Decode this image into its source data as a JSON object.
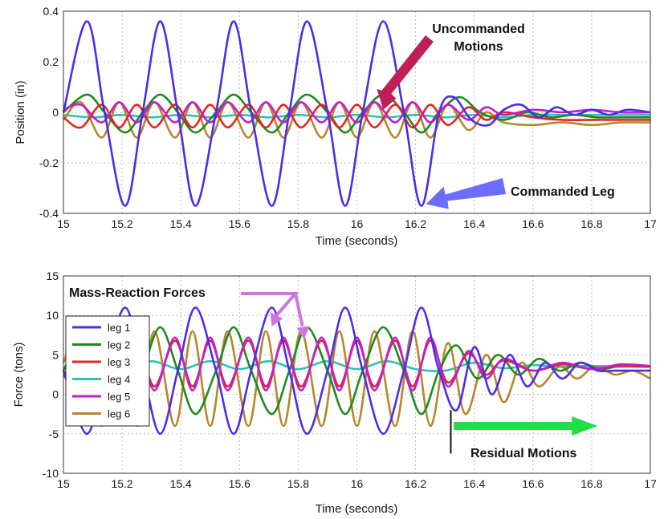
{
  "chart_data": [
    {
      "type": "line",
      "xlabel": "Time (seconds)",
      "ylabel": "Position (in)",
      "xlim": [
        15,
        17
      ],
      "ylim": [
        -0.4,
        0.4
      ],
      "xticks": [
        "15",
        "15.2",
        "15.4",
        "15.6",
        "15.8",
        "16",
        "16.2",
        "16.4",
        "16.6",
        "16.8",
        "17"
      ],
      "yticks": [
        "-0.4",
        "-0.2",
        "0",
        "0.2",
        "0.4"
      ],
      "grid": true,
      "series": [
        {
          "name": "leg 1",
          "color": "#4b2ee8",
          "x": [
            15.0,
            15.08,
            15.14,
            15.21,
            15.27,
            15.33,
            15.39,
            15.45,
            15.52,
            15.58,
            15.64,
            15.71,
            15.77,
            15.83,
            15.9,
            15.96,
            16.02,
            16.09,
            16.16,
            16.22,
            16.28,
            16.33,
            16.39,
            16.45,
            16.5,
            16.56,
            16.62,
            16.68,
            16.74,
            16.8,
            16.86,
            16.92,
            17.0
          ],
          "y": [
            0.0,
            0.36,
            0.0,
            -0.37,
            0.0,
            0.36,
            0.0,
            -0.37,
            0.0,
            0.36,
            0.0,
            -0.37,
            0.0,
            0.36,
            0.0,
            -0.37,
            0.0,
            0.36,
            0.0,
            -0.37,
            0.0,
            0.06,
            -0.03,
            -0.05,
            0.01,
            0.03,
            -0.02,
            0.02,
            -0.01,
            0.01,
            -0.01,
            0.01,
            0.0
          ]
        },
        {
          "name": "leg 2",
          "color": "#1e8a1e",
          "x": [
            15.0,
            15.08,
            15.14,
            15.21,
            15.27,
            15.33,
            15.39,
            15.45,
            15.52,
            15.58,
            15.64,
            15.71,
            15.77,
            15.83,
            15.9,
            15.96,
            16.02,
            16.09,
            16.16,
            16.22,
            16.28,
            16.35,
            16.42,
            16.5,
            16.58,
            16.66,
            16.74,
            16.82,
            16.9,
            17.0
          ],
          "y": [
            0.0,
            0.07,
            0.0,
            -0.08,
            0.0,
            0.07,
            0.0,
            -0.08,
            0.0,
            0.07,
            0.0,
            -0.08,
            0.0,
            0.07,
            0.0,
            -0.08,
            0.0,
            0.07,
            0.0,
            -0.08,
            0.0,
            0.06,
            0.0,
            -0.03,
            0.0,
            -0.02,
            -0.01,
            -0.02,
            -0.02,
            -0.02
          ]
        },
        {
          "name": "leg 3",
          "color": "#e3261f",
          "x": [
            15.0,
            15.06,
            15.13,
            15.19,
            15.25,
            15.31,
            15.38,
            15.44,
            15.5,
            15.56,
            15.63,
            15.69,
            15.75,
            15.81,
            15.88,
            15.94,
            16.0,
            16.06,
            16.13,
            16.19,
            16.25,
            16.31,
            16.38,
            16.44,
            16.5,
            16.6,
            16.7,
            16.8,
            16.9,
            17.0
          ],
          "y": [
            -0.02,
            -0.06,
            0.03,
            -0.06,
            0.03,
            -0.06,
            0.03,
            -0.06,
            0.03,
            -0.06,
            0.03,
            -0.06,
            0.03,
            -0.06,
            0.03,
            -0.06,
            0.03,
            -0.06,
            0.03,
            -0.06,
            0.03,
            -0.05,
            0.02,
            -0.03,
            0.0,
            -0.02,
            -0.03,
            -0.03,
            -0.03,
            -0.03
          ]
        },
        {
          "name": "leg 4",
          "color": "#2fbfb8",
          "x": [
            15.0,
            15.1,
            15.2,
            15.3,
            15.4,
            15.5,
            15.6,
            15.7,
            15.8,
            15.9,
            16.0,
            16.1,
            16.2,
            16.3,
            16.4,
            16.5,
            16.6,
            16.7,
            16.8,
            16.9,
            17.0
          ],
          "y": [
            -0.01,
            -0.02,
            -0.01,
            -0.02,
            -0.01,
            -0.02,
            -0.01,
            -0.02,
            -0.01,
            -0.02,
            -0.01,
            -0.02,
            -0.01,
            -0.02,
            -0.01,
            -0.02,
            -0.01,
            -0.01,
            -0.01,
            -0.01,
            -0.01
          ]
        },
        {
          "name": "leg 5",
          "color": "#c21dd0",
          "x": [
            15.0,
            15.06,
            15.13,
            15.19,
            15.25,
            15.31,
            15.38,
            15.44,
            15.5,
            15.56,
            15.63,
            15.69,
            15.75,
            15.81,
            15.88,
            15.94,
            16.0,
            16.06,
            16.13,
            16.19,
            16.25,
            16.31,
            16.38,
            16.44,
            16.5,
            16.6,
            16.7,
            16.8,
            16.9,
            17.0
          ],
          "y": [
            0.01,
            0.03,
            -0.04,
            0.04,
            -0.04,
            0.04,
            -0.04,
            0.04,
            -0.04,
            0.04,
            -0.04,
            0.04,
            -0.04,
            0.04,
            -0.04,
            0.04,
            -0.04,
            0.04,
            -0.04,
            0.04,
            -0.04,
            0.03,
            -0.03,
            0.02,
            -0.01,
            0.01,
            0.0,
            0.01,
            0.0,
            0.0
          ]
        },
        {
          "name": "leg 6",
          "color": "#b8862b",
          "x": [
            15.0,
            15.06,
            15.13,
            15.19,
            15.25,
            15.31,
            15.38,
            15.44,
            15.5,
            15.56,
            15.63,
            15.69,
            15.75,
            15.81,
            15.88,
            15.94,
            16.0,
            16.06,
            16.13,
            16.19,
            16.25,
            16.31,
            16.38,
            16.44,
            16.5,
            16.6,
            16.7,
            16.8,
            16.9,
            17.0
          ],
          "y": [
            -0.03,
            0.04,
            -0.1,
            0.04,
            -0.1,
            0.04,
            -0.1,
            0.04,
            -0.1,
            0.04,
            -0.1,
            0.04,
            -0.1,
            0.04,
            -0.1,
            0.04,
            -0.1,
            0.04,
            -0.1,
            0.04,
            -0.1,
            0.03,
            -0.07,
            0.0,
            -0.04,
            -0.05,
            -0.04,
            -0.05,
            -0.04,
            -0.04
          ]
        }
      ],
      "annotations": [
        {
          "text1": "Uncommanded",
          "text2": "Motions",
          "color": "#c01f55",
          "points_to": [
            16.09,
            0.01
          ]
        },
        {
          "text": "Commanded Leg",
          "color": "#6c6cff",
          "points_to": [
            16.23,
            -0.37
          ]
        }
      ]
    },
    {
      "type": "line",
      "xlabel": "Time (seconds)",
      "ylabel": "Force  (tons)",
      "xlim": [
        15,
        17
      ],
      "ylim": [
        -10,
        15
      ],
      "xticks": [
        "15",
        "15.2",
        "15.4",
        "15.6",
        "15.8",
        "16",
        "16.2",
        "16.4",
        "16.6",
        "16.8",
        "17"
      ],
      "yticks": [
        "-10",
        "-5",
        "0",
        "5",
        "10",
        "15"
      ],
      "grid": true,
      "legend": {
        "placement": "left",
        "entries": [
          "leg 1",
          "leg 2",
          "leg 3",
          "leg 4",
          "leg 5",
          "leg 6"
        ]
      },
      "series": [
        {
          "name": "leg 1",
          "color": "#4b2ee8",
          "x": [
            15.0,
            15.08,
            15.14,
            15.21,
            15.27,
            15.33,
            15.39,
            15.45,
            15.52,
            15.58,
            15.64,
            15.71,
            15.77,
            15.83,
            15.9,
            15.96,
            16.02,
            16.09,
            16.16,
            16.22,
            16.28,
            16.34,
            16.4,
            16.46,
            16.52,
            16.58,
            16.64,
            16.7,
            16.76,
            16.82,
            16.88,
            16.94,
            17.0
          ],
          "y": [
            3,
            -5,
            3,
            11,
            3,
            -5,
            3,
            11,
            3,
            -5,
            3,
            11,
            3,
            -5,
            3,
            11,
            3,
            -5,
            3,
            11,
            3,
            -2,
            6,
            0,
            5,
            1,
            4,
            2,
            4,
            3,
            3,
            3,
            3
          ]
        },
        {
          "name": "leg 2",
          "color": "#1e8a1e",
          "x": [
            15.0,
            15.08,
            15.14,
            15.21,
            15.27,
            15.33,
            15.39,
            15.45,
            15.52,
            15.58,
            15.64,
            15.71,
            15.77,
            15.83,
            15.9,
            15.96,
            16.02,
            16.09,
            16.16,
            16.22,
            16.28,
            16.34,
            16.41,
            16.48,
            16.55,
            16.62,
            16.69,
            16.76,
            16.83,
            16.9,
            17.0
          ],
          "y": [
            3,
            8.5,
            3,
            -2.5,
            3,
            8.5,
            3,
            -2.5,
            3,
            8.5,
            3,
            -2.5,
            3,
            8.5,
            3,
            -2.5,
            3,
            8.5,
            3,
            -2.5,
            3,
            6.2,
            2,
            5,
            2.5,
            4.5,
            3,
            4,
            3.2,
            3.6,
            3.5
          ]
        },
        {
          "name": "leg 3",
          "color": "#e3261f",
          "x": [
            15.0,
            15.06,
            15.13,
            15.19,
            15.25,
            15.31,
            15.38,
            15.44,
            15.5,
            15.56,
            15.63,
            15.69,
            15.75,
            15.81,
            15.88,
            15.94,
            16.0,
            16.06,
            16.13,
            16.19,
            16.25,
            16.31,
            16.38,
            16.44,
            16.5,
            16.6,
            16.7,
            16.8,
            16.9,
            17.0
          ],
          "y": [
            3,
            1,
            6.8,
            1,
            6.8,
            1,
            6.8,
            1,
            6.8,
            1,
            6.8,
            1,
            6.8,
            1,
            6.8,
            1,
            6.8,
            1,
            6.8,
            1,
            6.8,
            1.5,
            5.2,
            2.5,
            4.3,
            3,
            3.8,
            3.2,
            3.6,
            3.5
          ]
        },
        {
          "name": "leg 4",
          "color": "#2fbfb8",
          "x": [
            15.0,
            15.1,
            15.2,
            15.3,
            15.4,
            15.5,
            15.6,
            15.7,
            15.8,
            15.9,
            16.0,
            16.1,
            16.2,
            16.3,
            16.4,
            16.5,
            16.6,
            16.7,
            16.8,
            16.9,
            17.0
          ],
          "y": [
            3.2,
            4.2,
            3.2,
            4.2,
            3.2,
            4.2,
            3.2,
            4.2,
            3.2,
            4.2,
            3.2,
            4.2,
            3.2,
            3.0,
            4.0,
            3.3,
            3.7,
            3.5,
            3.6,
            3.5,
            3.5
          ]
        },
        {
          "name": "leg 5",
          "color": "#c21dd0",
          "x": [
            15.0,
            15.06,
            15.13,
            15.19,
            15.25,
            15.31,
            15.38,
            15.44,
            15.5,
            15.56,
            15.63,
            15.69,
            15.75,
            15.81,
            15.88,
            15.94,
            16.0,
            16.06,
            16.13,
            16.19,
            16.25,
            16.31,
            16.38,
            16.44,
            16.5,
            16.6,
            16.7,
            16.8,
            16.9,
            17.0
          ],
          "y": [
            2.5,
            0.5,
            7.2,
            0.5,
            7.2,
            0.5,
            7.2,
            0.5,
            7.2,
            0.5,
            7.2,
            0.5,
            7.2,
            0.5,
            7.2,
            0.5,
            7.2,
            0.5,
            7.2,
            0.5,
            7.2,
            1.0,
            5.5,
            2.0,
            4.5,
            3.0,
            4.0,
            3.2,
            3.8,
            3.6
          ]
        },
        {
          "name": "leg 6",
          "color": "#b8862b",
          "x": [
            15.0,
            15.06,
            15.13,
            15.19,
            15.25,
            15.31,
            15.38,
            15.44,
            15.5,
            15.56,
            15.63,
            15.69,
            15.75,
            15.81,
            15.88,
            15.94,
            16.0,
            16.06,
            16.13,
            16.19,
            16.25,
            16.31,
            16.37,
            16.44,
            16.5,
            16.56,
            16.62,
            16.69,
            16.75,
            16.81,
            16.88,
            16.94,
            17.0
          ],
          "y": [
            4,
            8,
            -4,
            8,
            -4,
            8,
            -4,
            8,
            -4,
            8,
            -4,
            8,
            -4,
            8,
            -4,
            8,
            -4,
            8,
            -4,
            8,
            -4,
            6.5,
            -2.5,
            5,
            -1,
            4,
            1,
            3.5,
            2,
            3.5,
            2.5,
            3,
            2
          ]
        }
      ],
      "annotations": [
        {
          "text": "Mass-Reaction Forces",
          "color": "#cc77dd",
          "points_to": [
            [
              15.71,
              8.6
            ],
            [
              15.82,
              7.0
            ]
          ]
        },
        {
          "text": "Residual Motions",
          "color": "#22dd44",
          "start_x": 16.32,
          "arrow_from": 16.33,
          "arrow_to": 16.82,
          "arrow_y": -4
        }
      ]
    }
  ]
}
